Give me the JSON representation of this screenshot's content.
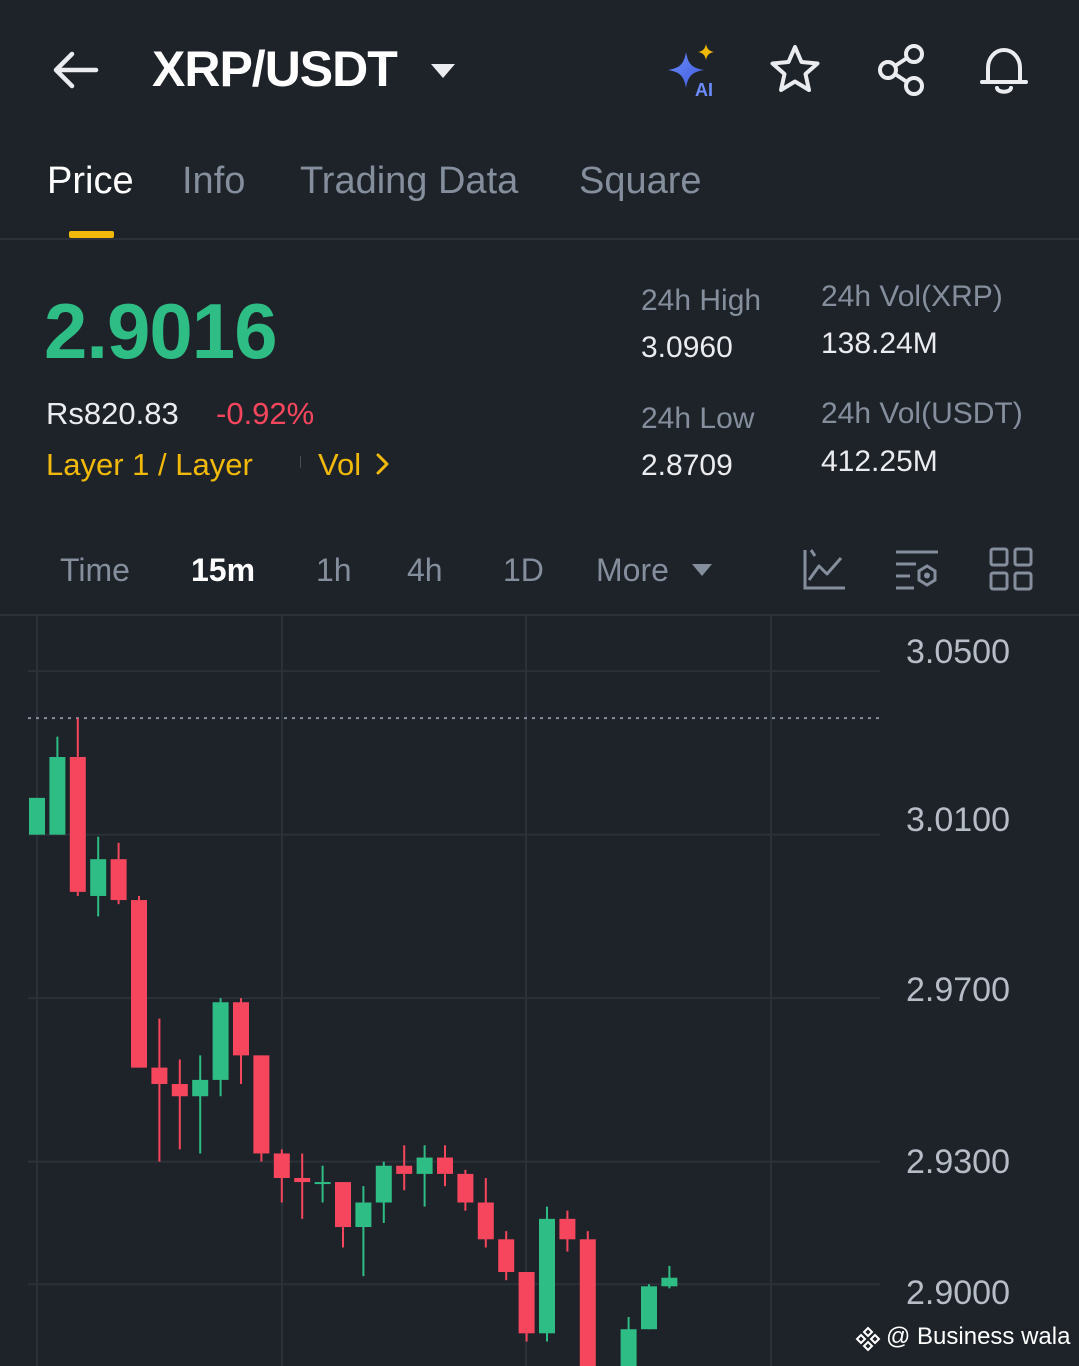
{
  "header": {
    "pair": "XRP/USDT",
    "icons": [
      "arrow-left-icon",
      "chevron-down-icon",
      "ai-sparkle-icon",
      "star-icon",
      "share-icon",
      "bell-icon"
    ]
  },
  "tabs": [
    {
      "label": "Price",
      "active": true
    },
    {
      "label": "Info",
      "active": false
    },
    {
      "label": "Trading Data",
      "active": false
    },
    {
      "label": "Square",
      "active": false
    }
  ],
  "ticker": {
    "last_price": "2.9016",
    "fiat_price": "Rs820.83",
    "change_pct": "-0.92%",
    "tag_sector": "Layer 1 / Layer",
    "tag_vol": "Vol",
    "high_label": "24h High",
    "high_value": "3.0960",
    "low_label": "24h Low",
    "low_value": "2.8709",
    "vol_base_label": "24h Vol(XRP)",
    "vol_base_value": "138.24M",
    "vol_quote_label": "24h Vol(USDT)",
    "vol_quote_value": "412.25M"
  },
  "timeframes": {
    "items": [
      {
        "label": "Time",
        "active": false
      },
      {
        "label": "15m",
        "active": true
      },
      {
        "label": "1h",
        "active": false
      },
      {
        "label": "4h",
        "active": false
      },
      {
        "label": "1D",
        "active": false
      }
    ],
    "more_label": "More",
    "tool_icons": [
      "chart-line-icon",
      "indicator-settings-icon",
      "grid-layout-icon"
    ]
  },
  "colors": {
    "background": "#1e2329",
    "up": "#2ebd85",
    "down": "#f6465d",
    "accent": "#f0b90b",
    "muted": "#848e9c"
  },
  "watermark": "@ Business wala",
  "chart_data": {
    "type": "candlestick",
    "y_ticks": [
      "3.0500",
      "3.0100",
      "2.9700",
      "2.9300",
      "2.9000"
    ],
    "ylim": [
      2.88,
      3.0635
    ],
    "reference_line": 3.0385,
    "candles": [
      {
        "o": 3.01,
        "h": 3.019,
        "l": 3.01,
        "c": 3.019
      },
      {
        "o": 3.01,
        "h": 3.034,
        "l": 3.01,
        "c": 3.029
      },
      {
        "o": 3.029,
        "h": 3.0385,
        "l": 2.995,
        "c": 2.996
      },
      {
        "o": 2.995,
        "h": 3.0095,
        "l": 2.99,
        "c": 3.004
      },
      {
        "o": 3.004,
        "h": 3.008,
        "l": 2.993,
        "c": 2.994
      },
      {
        "o": 2.994,
        "h": 2.995,
        "l": 2.953,
        "c": 2.953
      },
      {
        "o": 2.953,
        "h": 2.965,
        "l": 2.93,
        "c": 2.949
      },
      {
        "o": 2.949,
        "h": 2.955,
        "l": 2.933,
        "c": 2.946
      },
      {
        "o": 2.946,
        "h": 2.956,
        "l": 2.932,
        "c": 2.95
      },
      {
        "o": 2.95,
        "h": 2.97,
        "l": 2.946,
        "c": 2.969
      },
      {
        "o": 2.969,
        "h": 2.97,
        "l": 2.949,
        "c": 2.956
      },
      {
        "o": 2.956,
        "h": 2.956,
        "l": 2.93,
        "c": 2.932
      },
      {
        "o": 2.932,
        "h": 2.933,
        "l": 2.92,
        "c": 2.926
      },
      {
        "o": 2.926,
        "h": 2.932,
        "l": 2.916,
        "c": 2.925
      },
      {
        "o": 2.925,
        "h": 2.929,
        "l": 2.92,
        "c": 2.925
      },
      {
        "o": 2.925,
        "h": 2.925,
        "l": 2.909,
        "c": 2.914
      },
      {
        "o": 2.914,
        "h": 2.924,
        "l": 2.902,
        "c": 2.92
      },
      {
        "o": 2.92,
        "h": 2.93,
        "l": 2.915,
        "c": 2.929
      },
      {
        "o": 2.929,
        "h": 2.934,
        "l": 2.923,
        "c": 2.927
      },
      {
        "o": 2.927,
        "h": 2.934,
        "l": 2.919,
        "c": 2.931
      },
      {
        "o": 2.931,
        "h": 2.934,
        "l": 2.924,
        "c": 2.927
      },
      {
        "o": 2.927,
        "h": 2.928,
        "l": 2.918,
        "c": 2.92
      },
      {
        "o": 2.92,
        "h": 2.926,
        "l": 2.909,
        "c": 2.911
      },
      {
        "o": 2.911,
        "h": 2.913,
        "l": 2.901,
        "c": 2.903
      },
      {
        "o": 2.903,
        "h": 2.903,
        "l": 2.886,
        "c": 2.888
      },
      {
        "o": 2.888,
        "h": 2.919,
        "l": 2.886,
        "c": 2.916
      },
      {
        "o": 2.916,
        "h": 2.918,
        "l": 2.908,
        "c": 2.911
      },
      {
        "o": 2.911,
        "h": 2.913,
        "l": 2.88,
        "c": 2.88
      },
      {
        "o": 2.88,
        "h": 2.88,
        "l": 2.88,
        "c": 2.88
      },
      {
        "o": 2.88,
        "h": 2.892,
        "l": 2.88,
        "c": 2.889
      },
      {
        "o": 2.889,
        "h": 2.9,
        "l": 2.889,
        "c": 2.8995
      },
      {
        "o": 2.8995,
        "h": 2.9045,
        "l": 2.899,
        "c": 2.9016
      }
    ]
  }
}
